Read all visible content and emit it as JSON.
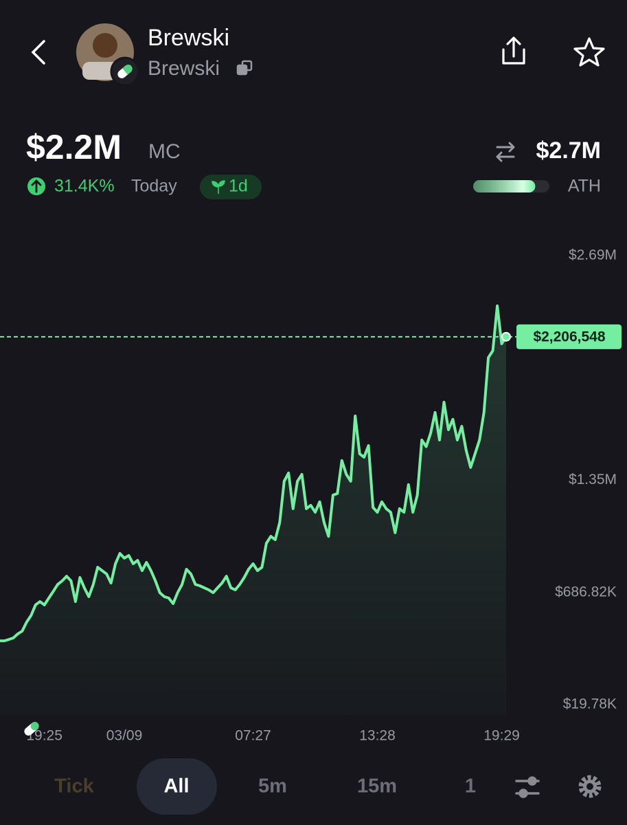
{
  "header": {
    "name": "Brewski",
    "ticker": "Brewski"
  },
  "stats": {
    "market_cap": {
      "value": 2200000,
      "label": "$2.2M"
    },
    "mc_label": "MC",
    "change": "31.4K%",
    "period": "Today",
    "age": "1d",
    "ath": {
      "value": 2700000,
      "label": "$2.7M"
    },
    "ath_label": "ATH"
  },
  "chart_data": {
    "type": "line",
    "color": "#74eea0",
    "xlim": [
      0,
      114
    ],
    "xticks": [
      {
        "value": 10,
        "label": "19:25"
      },
      {
        "value": 28,
        "label": "03/09"
      },
      {
        "value": 57,
        "label": "07:27"
      },
      {
        "value": 85,
        "label": "13:28"
      },
      {
        "value": 113,
        "label": "19:29"
      }
    ],
    "ylim": [
      0,
      2687940
    ],
    "yticks": [
      {
        "value": 19780,
        "label": "$19.78K"
      },
      {
        "value": 686820,
        "label": "$686.82K"
      },
      {
        "value": 1353860,
        "label": "$1.35M"
      },
      {
        "value": 2687940,
        "label": "$2.69M"
      }
    ],
    "values": [
      400000,
      400000,
      408000,
      417000,
      441000,
      458000,
      511000,
      551000,
      613000,
      633000,
      613000,
      654000,
      694000,
      735000,
      756000,
      784000,
      756000,
      633000,
      776000,
      715000,
      662000,
      735000,
      837000,
      817000,
      797000,
      743000,
      858000,
      919000,
      891000,
      907000,
      858000,
      878000,
      817000,
      866000,
      817000,
      756000,
      686000,
      662000,
      654000,
      621000,
      686000,
      735000,
      825000,
      797000,
      735000,
      727000,
      715000,
      703000,
      686000,
      715000,
      743000,
      784000,
      715000,
      703000,
      735000,
      776000,
      825000,
      858000,
      817000,
      837000,
      980000,
      1021000,
      1001000,
      1103000,
      1348000,
      1397000,
      1185000,
      1348000,
      1389000,
      1185000,
      1205000,
      1164000,
      1226000,
      1103000,
      1021000,
      1266000,
      1275000,
      1471000,
      1389000,
      1348000,
      1736000,
      1511000,
      1491000,
      1560000,
      1193000,
      1164000,
      1226000,
      1185000,
      1164000,
      1042000,
      1185000,
      1164000,
      1328000,
      1164000,
      1266000,
      1593000,
      1554000,
      1634000,
      1757000,
      1593000,
      1818000,
      1654000,
      1716000,
      1593000,
      1675000,
      1532000,
      1430000,
      1511000,
      1593000,
      1757000,
      2083000,
      2124000,
      2390000,
      2165000,
      2206548
    ],
    "current": {
      "value": 2206548,
      "label": "$2,206,548"
    }
  },
  "tabs": [
    "Tick",
    "All",
    "5m",
    "15m",
    "1"
  ]
}
